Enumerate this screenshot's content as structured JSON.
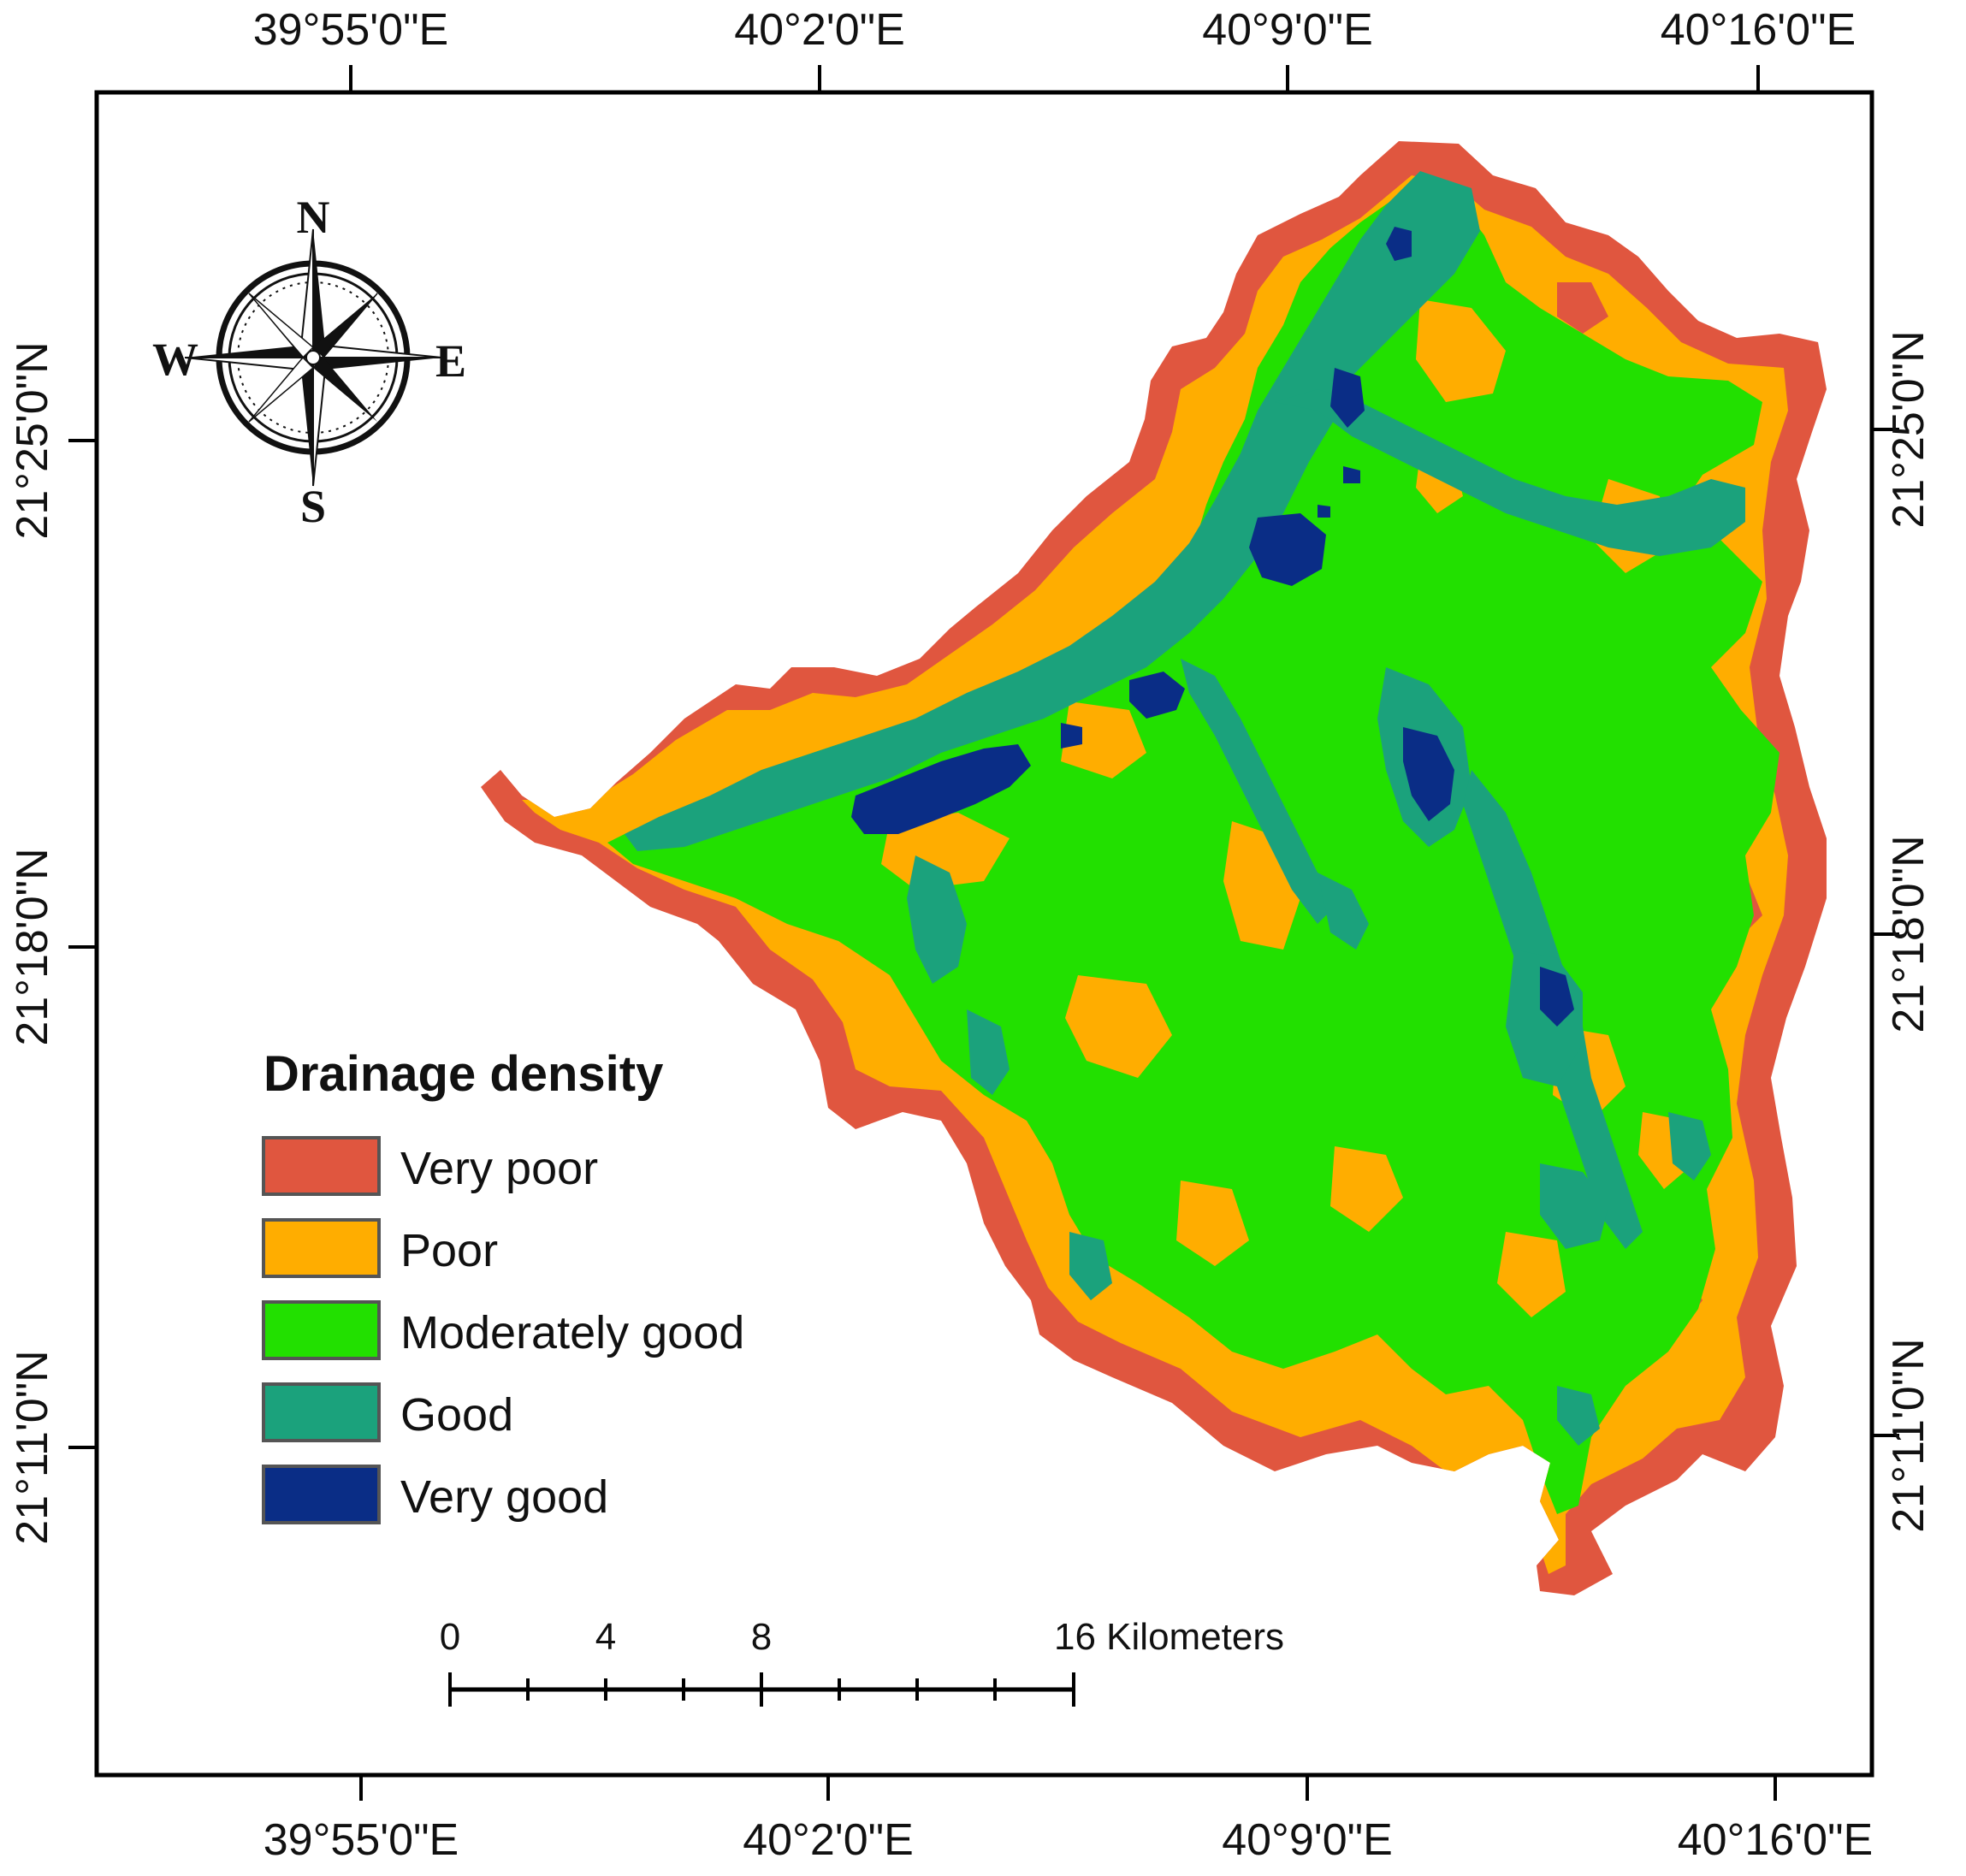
{
  "map": {
    "lon_labels": [
      "39°55'0\"E",
      "40°2'0\"E",
      "40°9'0\"E",
      "40°16'0\"E"
    ],
    "lat_labels": [
      "21°25'0\"N",
      "21°18'0\"N",
      "21°11'0\"N"
    ]
  },
  "compass": {
    "north": "N",
    "south": "S",
    "east": "E",
    "west": "W"
  },
  "legend": {
    "title": "Drainage density",
    "classes": [
      {
        "label": "Very poor",
        "color": "#E0563F"
      },
      {
        "label": "Poor",
        "color": "#FFAD00"
      },
      {
        "label": "Moderately good",
        "color": "#22E000"
      },
      {
        "label": "Good",
        "color": "#1BA27C"
      },
      {
        "label": "Very good",
        "color": "#0A2D86"
      }
    ]
  },
  "scale_bar": {
    "labels": [
      "0",
      "4",
      "8",
      "16 Kilometers"
    ]
  }
}
